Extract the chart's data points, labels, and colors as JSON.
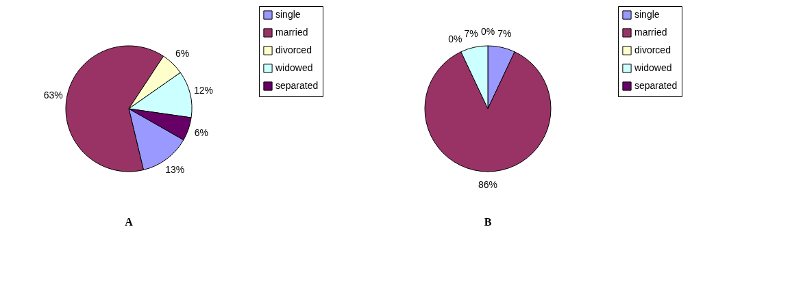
{
  "chart_data": [
    {
      "type": "pie",
      "title": "A",
      "categories": [
        "single",
        "married",
        "divorced",
        "widowed",
        "separated"
      ],
      "values": [
        13,
        63,
        6,
        12,
        6
      ],
      "value_labels": [
        "13%",
        "63%",
        "6%",
        "12%",
        "6%"
      ],
      "colors": [
        "#9999ff",
        "#993366",
        "#ffffcc",
        "#ccffff",
        "#660066"
      ],
      "legend": "right"
    },
    {
      "type": "pie",
      "title": "B",
      "categories": [
        "single",
        "married",
        "divorced",
        "widowed",
        "separated"
      ],
      "values": [
        7,
        86,
        0,
        7,
        0
      ],
      "value_labels": [
        "7%",
        "86%",
        "0%",
        "7%",
        "0%"
      ],
      "colors": [
        "#9999ff",
        "#993366",
        "#ffffcc",
        "#ccffff",
        "#660066"
      ],
      "legend": "right"
    }
  ]
}
